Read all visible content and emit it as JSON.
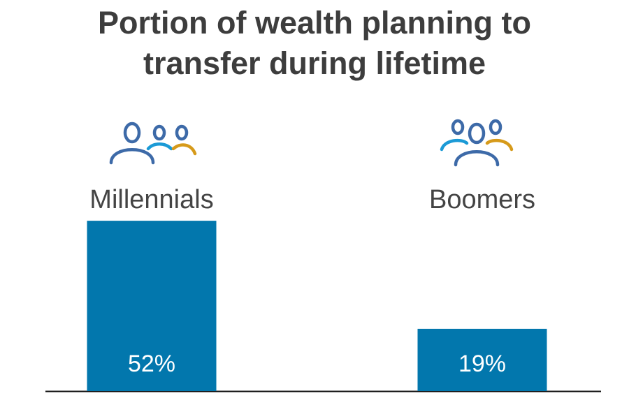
{
  "chart_data": {
    "type": "bar",
    "title": "Portion of wealth planning to transfer during lifetime",
    "categories": [
      "Millennials",
      "Boomers"
    ],
    "values": [
      52,
      19
    ],
    "value_labels": [
      "52%",
      "19%"
    ],
    "color": "#0277ad"
  }
}
